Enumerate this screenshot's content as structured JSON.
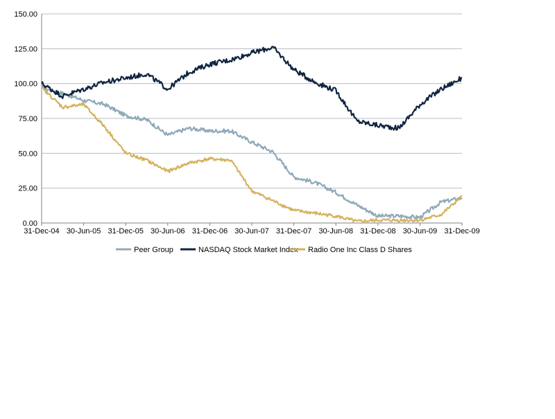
{
  "chart_data": {
    "type": "line",
    "title": "",
    "xlabel": "",
    "ylabel": "",
    "ylim": [
      0,
      150
    ],
    "y_ticks": [
      "0.00",
      "25.00",
      "50.00",
      "75.00",
      "100.00",
      "125.00",
      "150.00"
    ],
    "x_ticks": [
      "31-Dec-04",
      "30-Jun-05",
      "31-Dec-05",
      "30-Jun-06",
      "31-Dec-06",
      "30-Jun-07",
      "31-Dec-07",
      "30-Jun-08",
      "31-Dec-08",
      "30-Jun-09",
      "31-Dec-09"
    ],
    "grid": "horizontal",
    "legend_position": "bottom",
    "x": [
      "31-Dec-04",
      "31-Mar-05",
      "30-Jun-05",
      "30-Sep-05",
      "31-Dec-05",
      "31-Mar-06",
      "30-Jun-06",
      "30-Sep-06",
      "31-Dec-06",
      "31-Mar-07",
      "30-Jun-07",
      "30-Sep-07",
      "31-Dec-07",
      "31-Mar-08",
      "30-Jun-08",
      "30-Sep-08",
      "31-Dec-08",
      "31-Mar-09",
      "30-Jun-09",
      "30-Sep-09",
      "31-Dec-09"
    ],
    "series": [
      {
        "name": "Peer Group",
        "color": "#8fa9b8",
        "values": [
          97,
          93,
          88,
          85,
          77,
          74,
          63,
          68,
          66,
          66,
          58,
          51,
          33,
          29,
          22,
          13,
          5,
          5,
          4,
          15,
          18
        ]
      },
      {
        "name": "NASDAQ Stock Market Index",
        "color": "#0f2440",
        "values": [
          100,
          91,
          96,
          101,
          104,
          107,
          96,
          108,
          114,
          117,
          122,
          126,
          110,
          101,
          95,
          73,
          70,
          68,
          85,
          96,
          104
        ]
      },
      {
        "name": "Radio One Inc Class D Shares",
        "color": "#d4b25c",
        "values": [
          97,
          83,
          85,
          69,
          50,
          45,
          37,
          43,
          46,
          45,
          23,
          16,
          9,
          7,
          5,
          1,
          2,
          2,
          2,
          6,
          19
        ]
      }
    ]
  }
}
